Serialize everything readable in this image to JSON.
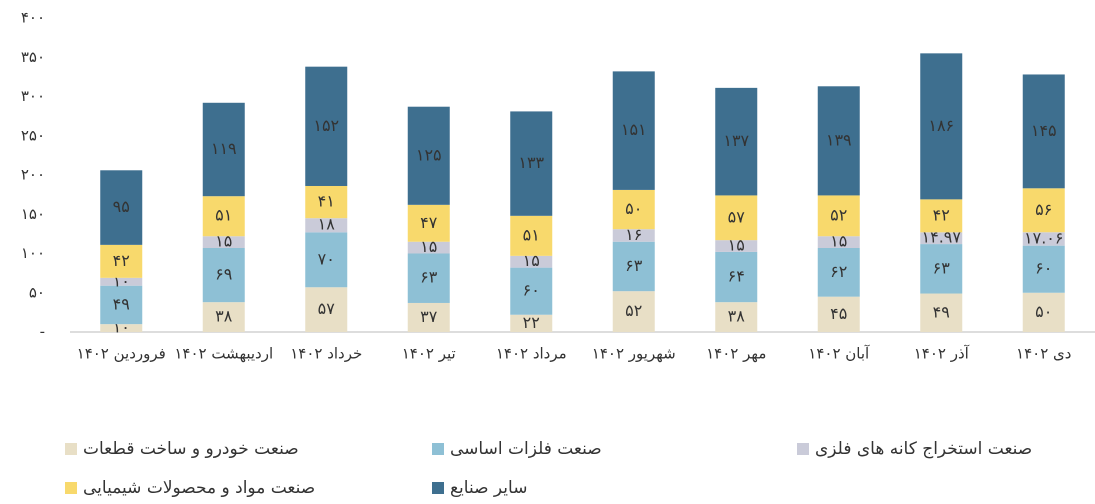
{
  "chart_data": {
    "type": "stacked_bar",
    "categories": [
      "فروردین ۱۴۰۲",
      "اردیبهشت ۱۴۰۲",
      "خرداد ۱۴۰۲",
      "تیر ۱۴۰۲",
      "مرداد ۱۴۰۲",
      "شهریور ۱۴۰۲",
      "مهر ۱۴۰۲",
      "آبان ۱۴۰۲",
      "آذر ۱۴۰۲",
      "دی ۱۴۰۲"
    ],
    "series": [
      {
        "name": "صنعت خودرو و ساخت قطعات",
        "color": "#e8dfc6",
        "values": [
          10,
          38,
          57,
          37,
          22,
          52,
          38,
          45,
          49,
          50
        ],
        "value_labels": [
          "۱۰",
          "۳۸",
          "۵۷",
          "۳۷",
          "۲۲",
          "۵۲",
          "۳۸",
          "۴۵",
          "۴۹",
          "۵۰"
        ]
      },
      {
        "name": "صنعت فلزات اساسی",
        "color": "#8ec0d5",
        "values": [
          49,
          69,
          70,
          63,
          60,
          63,
          64,
          62,
          63,
          60
        ],
        "value_labels": [
          "۴۹",
          "۶۹",
          "۷۰",
          "۶۳",
          "۶۰",
          "۶۳",
          "۶۴",
          "۶۲",
          "۶۳",
          "۶۰"
        ]
      },
      {
        "name": "صنعت استخراج کانه های فلزی",
        "color": "#cacbd9",
        "values": [
          10,
          15,
          18,
          15,
          15,
          16,
          15,
          15,
          14.97,
          17.06
        ],
        "value_labels": [
          "۱۰",
          "۱۵",
          "۱۸",
          "۱۵",
          "۱۵",
          "۱۶",
          "۱۵",
          "۱۵",
          "۱۴.۹۷",
          "۱۷.۰۶"
        ]
      },
      {
        "name": "صنعت مواد و محصولات شیمیایی",
        "color": "#f8d96c",
        "values": [
          42,
          51,
          41,
          47,
          51,
          50,
          57,
          52,
          42,
          56
        ],
        "value_labels": [
          "۴۲",
          "۵۱",
          "۴۱",
          "۴۷",
          "۵۱",
          "۵۰",
          "۵۷",
          "۵۲",
          "۴۲",
          "۵۶"
        ]
      },
      {
        "name": "سایر صنایع",
        "color": "#3e6f8f",
        "values": [
          95,
          119,
          152,
          125,
          133,
          151,
          137,
          139,
          186,
          145
        ],
        "value_labels": [
          "۹۵",
          "۱۱۹",
          "۱۵۲",
          "۱۲۵",
          "۱۳۳",
          "۱۵۱",
          "۱۳۷",
          "۱۳۹",
          "۱۸۶",
          "۱۴۵"
        ]
      }
    ],
    "ylim": [
      0,
      400
    ],
    "yticks": [
      {
        "value": 0,
        "label": "-"
      },
      {
        "value": 50,
        "label": "۵۰"
      },
      {
        "value": 100,
        "label": "۱۰۰"
      },
      {
        "value": 150,
        "label": "۱۵۰"
      },
      {
        "value": 200,
        "label": "۲۰۰"
      },
      {
        "value": 250,
        "label": "۲۵۰"
      },
      {
        "value": 300,
        "label": "۳۰۰"
      },
      {
        "value": 350,
        "label": "۳۵۰"
      },
      {
        "value": 400,
        "label": "۴۰۰"
      }
    ],
    "grid": false,
    "legend": "bottom"
  }
}
